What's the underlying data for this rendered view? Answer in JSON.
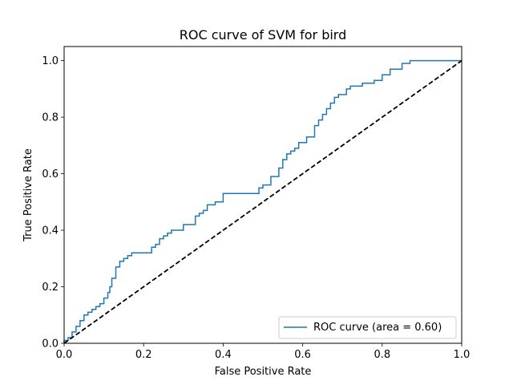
{
  "chart_data": {
    "type": "line",
    "title": "ROC curve of SVM for bird",
    "xlabel": "False Positive Rate",
    "ylabel": "True Positive Rate",
    "xlim": [
      0.0,
      1.0
    ],
    "ylim": [
      0.0,
      1.05
    ],
    "xticks": [
      "0.0",
      "0.2",
      "0.4",
      "0.6",
      "0.8",
      "1.0"
    ],
    "yticks": [
      "0.0",
      "0.2",
      "0.4",
      "0.6",
      "0.8",
      "1.0"
    ],
    "grid": false,
    "legend_placement": "lower-right",
    "series": [
      {
        "name": "ROC curve (area = 0.60)",
        "color": "#1f77b4",
        "style": "solid",
        "x": [
          0.0,
          0.0,
          0.01,
          0.01,
          0.02,
          0.02,
          0.03,
          0.03,
          0.04,
          0.04,
          0.05,
          0.05,
          0.06,
          0.06,
          0.07,
          0.07,
          0.08,
          0.08,
          0.09,
          0.09,
          0.1,
          0.1,
          0.11,
          0.11,
          0.115,
          0.115,
          0.12,
          0.12,
          0.13,
          0.13,
          0.14,
          0.14,
          0.15,
          0.15,
          0.16,
          0.16,
          0.17,
          0.17,
          0.22,
          0.22,
          0.23,
          0.23,
          0.24,
          0.24,
          0.25,
          0.25,
          0.26,
          0.26,
          0.27,
          0.27,
          0.3,
          0.3,
          0.33,
          0.33,
          0.34,
          0.34,
          0.35,
          0.35,
          0.36,
          0.36,
          0.38,
          0.38,
          0.4,
          0.4,
          0.49,
          0.49,
          0.5,
          0.5,
          0.52,
          0.52,
          0.54,
          0.54,
          0.55,
          0.55,
          0.56,
          0.56,
          0.57,
          0.57,
          0.58,
          0.58,
          0.59,
          0.59,
          0.61,
          0.61,
          0.63,
          0.63,
          0.64,
          0.64,
          0.65,
          0.65,
          0.66,
          0.66,
          0.67,
          0.67,
          0.68,
          0.68,
          0.69,
          0.69,
          0.71,
          0.71,
          0.72,
          0.72,
          0.75,
          0.75,
          0.78,
          0.78,
          0.8,
          0.8,
          0.82,
          0.82,
          0.85,
          0.85,
          0.87,
          0.87,
          0.96,
          0.96,
          1.0
        ],
        "y": [
          0.0,
          0.01,
          0.01,
          0.02,
          0.02,
          0.04,
          0.04,
          0.06,
          0.06,
          0.08,
          0.08,
          0.1,
          0.1,
          0.11,
          0.11,
          0.12,
          0.12,
          0.13,
          0.13,
          0.14,
          0.14,
          0.16,
          0.16,
          0.18,
          0.18,
          0.2,
          0.2,
          0.23,
          0.23,
          0.27,
          0.27,
          0.29,
          0.29,
          0.3,
          0.3,
          0.31,
          0.31,
          0.32,
          0.32,
          0.34,
          0.34,
          0.35,
          0.35,
          0.37,
          0.37,
          0.38,
          0.38,
          0.39,
          0.39,
          0.4,
          0.4,
          0.42,
          0.42,
          0.45,
          0.45,
          0.46,
          0.46,
          0.47,
          0.47,
          0.49,
          0.49,
          0.5,
          0.5,
          0.53,
          0.53,
          0.55,
          0.55,
          0.56,
          0.56,
          0.59,
          0.59,
          0.62,
          0.62,
          0.65,
          0.65,
          0.67,
          0.67,
          0.68,
          0.68,
          0.69,
          0.69,
          0.71,
          0.71,
          0.73,
          0.73,
          0.77,
          0.77,
          0.79,
          0.79,
          0.81,
          0.81,
          0.83,
          0.83,
          0.85,
          0.85,
          0.87,
          0.87,
          0.88,
          0.88,
          0.9,
          0.9,
          0.91,
          0.91,
          0.92,
          0.92,
          0.93,
          0.93,
          0.95,
          0.95,
          0.97,
          0.97,
          0.99,
          0.99,
          1.0,
          1.0,
          1.0,
          1.0
        ]
      },
      {
        "name": "",
        "color": "#000000",
        "style": "dashed",
        "x": [
          0.0,
          1.0
        ],
        "y": [
          0.0,
          1.0
        ]
      }
    ]
  }
}
